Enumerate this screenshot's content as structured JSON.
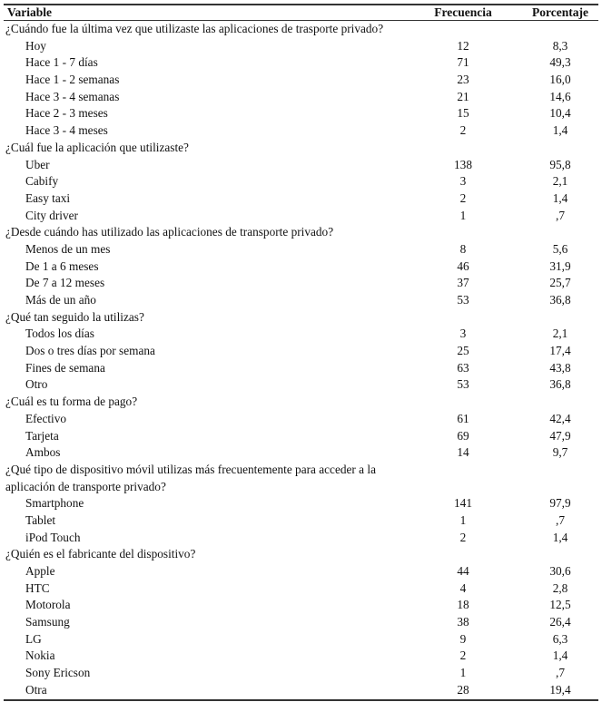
{
  "header": {
    "variable": "Variable",
    "frecuencia": "Frecuencia",
    "porcentaje": "Porcentaje"
  },
  "sections": [
    {
      "question": [
        "¿Cuándo fue la última vez que utilizaste las aplicaciones de trasporte privado?"
      ],
      "rows": [
        [
          "Hoy",
          "12",
          "8,3"
        ],
        [
          "Hace 1 - 7 días",
          "71",
          "49,3"
        ],
        [
          "Hace 1 - 2 semanas",
          "23",
          "16,0"
        ],
        [
          "Hace 3 - 4 semanas",
          "21",
          "14,6"
        ],
        [
          "Hace 2 - 3 meses",
          "15",
          "10,4"
        ],
        [
          "Hace 3 - 4 meses",
          "2",
          "1,4"
        ]
      ]
    },
    {
      "question": [
        "¿Cuál fue la aplicación que utilizaste?"
      ],
      "rows": [
        [
          "Uber",
          "138",
          "95,8"
        ],
        [
          "Cabify",
          "3",
          "2,1"
        ],
        [
          "Easy taxi",
          "2",
          "1,4"
        ],
        [
          "City driver",
          "1",
          ",7"
        ]
      ]
    },
    {
      "question": [
        "¿Desde cuándo has utilizado las aplicaciones de transporte privado?"
      ],
      "rows": [
        [
          "Menos de un mes",
          "8",
          "5,6"
        ],
        [
          "De 1 a 6 meses",
          "46",
          "31,9"
        ],
        [
          "De 7 a 12 meses",
          "37",
          "25,7"
        ],
        [
          "Más de un año",
          "53",
          "36,8"
        ]
      ]
    },
    {
      "question": [
        "¿Qué tan seguido la utilizas?"
      ],
      "rows": [
        [
          "Todos los días",
          "3",
          "2,1"
        ],
        [
          "Dos o tres días por semana",
          "25",
          "17,4"
        ],
        [
          "Fines de semana",
          "63",
          "43,8"
        ],
        [
          "Otro",
          "53",
          "36,8"
        ]
      ]
    },
    {
      "question": [
        "¿Cuál es tu forma de pago?"
      ],
      "rows": [
        [
          "Efectivo",
          "61",
          "42,4"
        ],
        [
          "Tarjeta",
          "69",
          "47,9"
        ],
        [
          "Ambos",
          "14",
          "9,7"
        ]
      ]
    },
    {
      "question": [
        "¿Qué tipo de dispositivo móvil utilizas más frecuentemente para acceder a la",
        "aplicación de transporte privado?"
      ],
      "rows": [
        [
          "Smartphone",
          "141",
          "97,9"
        ],
        [
          "Tablet",
          "1",
          ",7"
        ],
        [
          "iPod Touch",
          "2",
          "1,4"
        ]
      ]
    },
    {
      "question": [
        "¿Quién es el fabricante del dispositivo?"
      ],
      "rows": [
        [
          "Apple",
          "44",
          "30,6"
        ],
        [
          "HTC",
          "4",
          "2,8"
        ],
        [
          "Motorola",
          "18",
          "12,5"
        ],
        [
          "Samsung",
          "38",
          "26,4"
        ],
        [
          "LG",
          "9",
          "6,3"
        ],
        [
          "Nokia",
          "2",
          "1,4"
        ],
        [
          "Sony Ericson",
          "1",
          ",7"
        ],
        [
          "Otra",
          "28",
          "19,4"
        ]
      ]
    }
  ]
}
